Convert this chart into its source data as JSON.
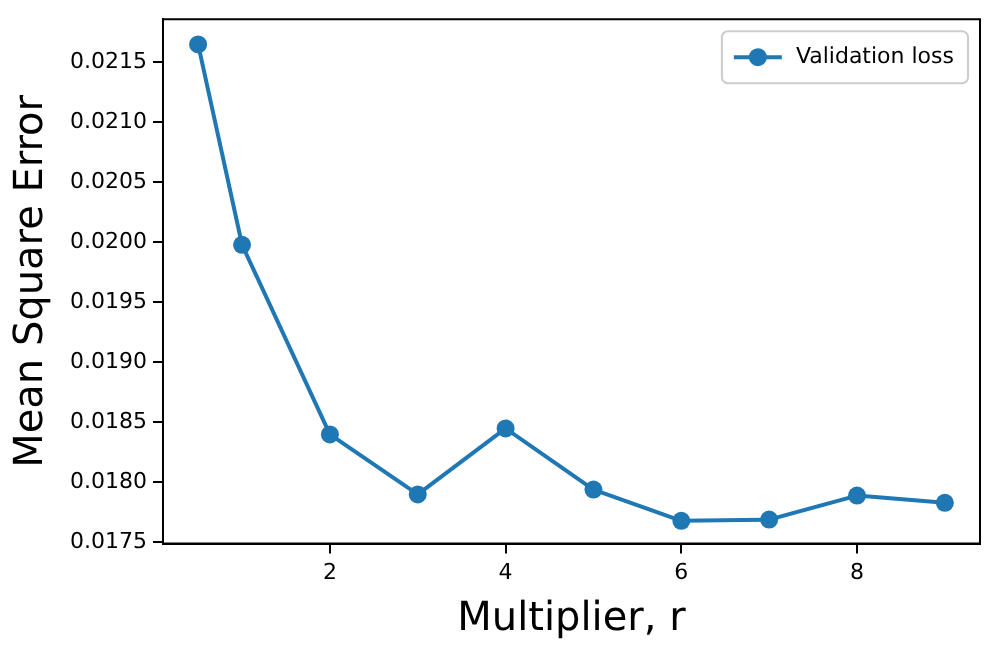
{
  "chart_data": {
    "type": "line",
    "xlabel": "Multiplier, r",
    "ylabel": "Mean Square Error",
    "series": [
      {
        "name": "Validation loss",
        "color": "#1f77b4",
        "x": [
          0.5,
          1,
          2,
          3,
          4,
          5,
          6,
          7,
          8,
          9
        ],
        "values": [
          0.02165,
          0.01998,
          0.0184,
          0.0179,
          0.01845,
          0.01794,
          0.01768,
          0.01769,
          0.01789,
          0.01783
        ]
      }
    ],
    "xlim": [
      0.1,
      9.4
    ],
    "ylim": [
      0.01749,
      0.02186
    ],
    "xticks": [
      2,
      4,
      6,
      8
    ],
    "yticks": [
      {
        "value": 0.0175,
        "label": "0.0175"
      },
      {
        "value": 0.018,
        "label": "0.0180"
      },
      {
        "value": 0.0185,
        "label": "0.0185"
      },
      {
        "value": 0.019,
        "label": "0.0190"
      },
      {
        "value": 0.0195,
        "label": "0.0195"
      },
      {
        "value": 0.02,
        "label": "0.0200"
      },
      {
        "value": 0.0205,
        "label": "0.0205"
      },
      {
        "value": 0.021,
        "label": "0.0210"
      },
      {
        "value": 0.0215,
        "label": "0.0215"
      }
    ],
    "grid": false,
    "legend": "top right",
    "marker": "circle",
    "line_style": "solid"
  }
}
